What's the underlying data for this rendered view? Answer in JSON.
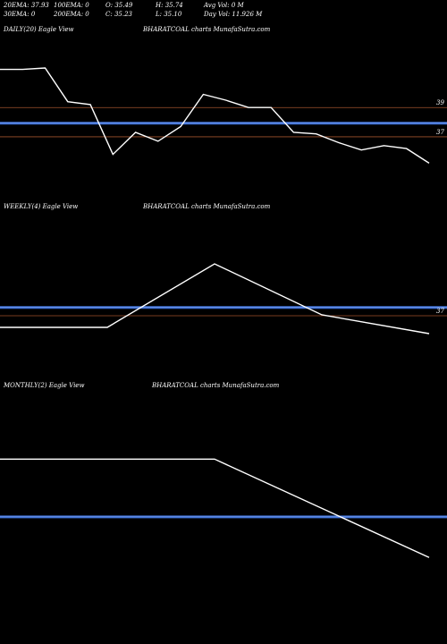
{
  "header": {
    "row1": [
      {
        "name": "ema20-stat",
        "text": "20EMA: 37.93"
      },
      {
        "name": "ema100-stat",
        "text": "100EMA: 0"
      },
      {
        "name": "open-stat",
        "text": "O: 35.49"
      },
      {
        "name": "high-stat",
        "text": "H: 35.74"
      },
      {
        "name": "avg-vol-stat",
        "text": "Avg Vol: 0  M"
      }
    ],
    "row2": [
      {
        "name": "ema30-stat",
        "text": "30EMA: 0"
      },
      {
        "name": "ema200-stat",
        "text": "200EMA: 0"
      },
      {
        "name": "close-stat",
        "text": "C: 35.23"
      },
      {
        "name": "low-stat",
        "text": "L: 35.10"
      },
      {
        "name": "day-vol-stat",
        "text": "Day Vol: 11.926  M"
      }
    ]
  },
  "panels": {
    "daily": {
      "label": "DAILY(20) Eagle  View",
      "watermark": "BHARATCOAL charts MunafaSutra.com"
    },
    "weekly": {
      "label": "WEEKLY(4) Eagle  View",
      "watermark": "BHARATCOAL charts MunafaSutra.com"
    },
    "monthly": {
      "label": "MONTHLY(2) Eagle  View",
      "watermark": "BHARATCOAL charts MunafaSutra.com"
    }
  },
  "colors": {
    "background": "#000000",
    "price_line": "#ffffff",
    "ema_line": "#3d6fd6",
    "level_line": "#a0522d"
  },
  "chart_data": [
    {
      "type": "line",
      "panel": "daily",
      "ylim": [
        32.6,
        42.8
      ],
      "x": [
        1,
        2,
        3,
        4,
        5,
        6,
        7,
        8,
        9,
        10,
        11,
        12,
        13,
        14,
        15,
        16,
        17,
        18,
        19,
        20
      ],
      "series": [
        {
          "values": [
            41.6,
            41.6,
            41.7,
            39.4,
            39.2,
            35.8,
            37.3,
            36.7,
            37.7,
            39.9,
            39.5,
            39.0,
            39.0,
            37.3,
            37.2,
            36.6,
            36.1,
            36.4,
            36.2,
            35.2
          ]
        }
      ],
      "ema": 37.93,
      "levels": [
        39.0,
        37.0
      ],
      "ticks": [
        {
          "value": 39.0,
          "label": "39"
        },
        {
          "value": 37.0,
          "label": "37"
        }
      ]
    },
    {
      "type": "line",
      "panel": "weekly",
      "ylim": [
        31.3,
        45.3
      ],
      "x": [
        1,
        2,
        3,
        4
      ],
      "series": [
        {
          "values": [
            35.7,
            42.8,
            37.1,
            35.0
          ]
        }
      ],
      "ema": 37.93,
      "levels": [
        37.0
      ],
      "ticks": [
        {
          "value": 37.0,
          "label": "37"
        }
      ]
    },
    {
      "type": "line",
      "panel": "monthly",
      "ylim": [
        30.0,
        45.0
      ],
      "x": [
        1,
        2
      ],
      "series": [
        {
          "values": [
            41.8,
            35.2
          ]
        }
      ],
      "ema": 37.93,
      "levels": [],
      "ticks": []
    }
  ]
}
